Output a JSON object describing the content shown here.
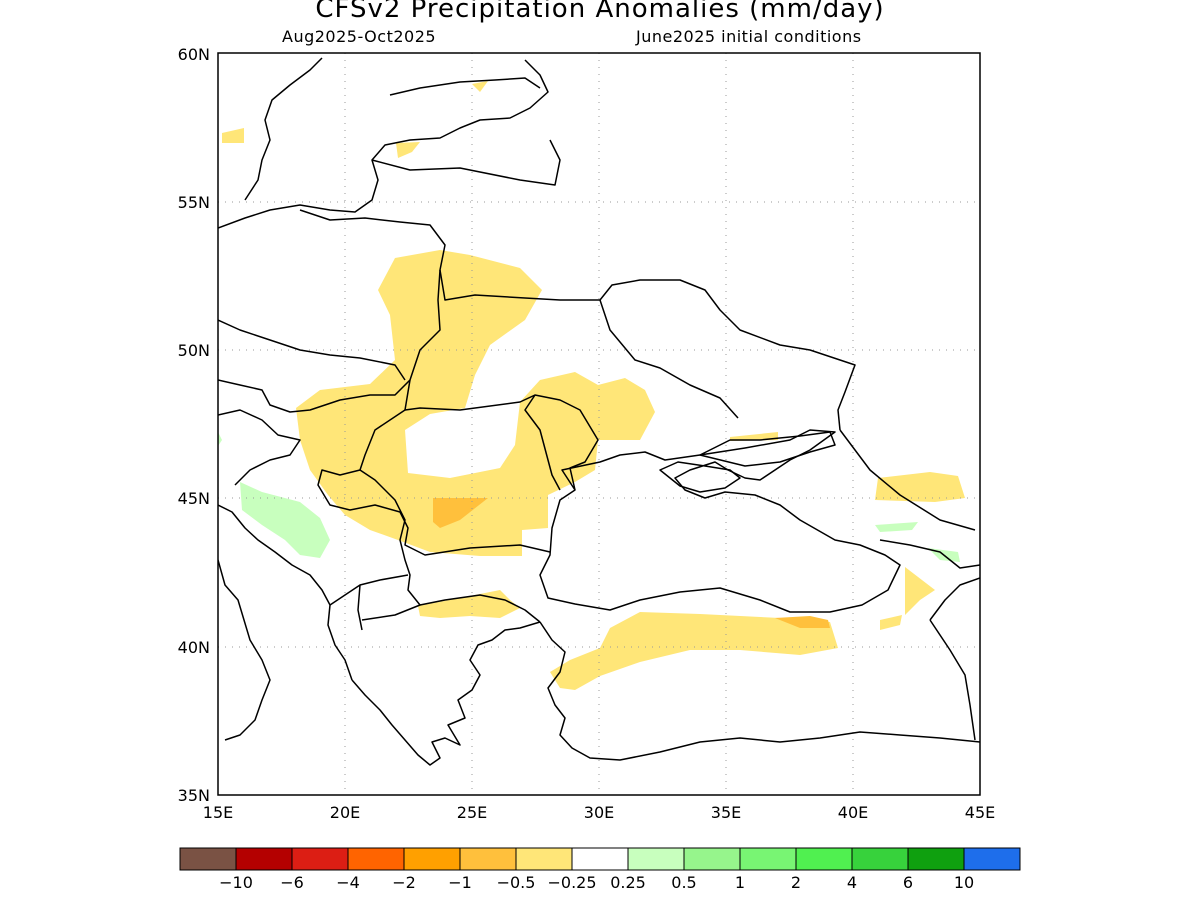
{
  "title": "CFSv2 Precipitation Anomalies (mm/day)",
  "subtitle_left": "Aug2025-Oct2025",
  "subtitle_right": "June2025 initial conditions",
  "map": {
    "lon_range": [
      15,
      45
    ],
    "lat_range": [
      35,
      60
    ],
    "grid": true,
    "x_ticks": [
      "15E",
      "20E",
      "25E",
      "30E",
      "35E",
      "40E",
      "45E"
    ],
    "y_ticks": [
      "35N",
      "40N",
      "45N",
      "50N",
      "55N",
      "60N"
    ]
  },
  "colorbar": {
    "colors": [
      "#7a5244",
      "#b40000",
      "#dc1e14",
      "#ff6400",
      "#ffa000",
      "#ffc03c",
      "#ffe678",
      "#ffffff",
      "#c8ffbe",
      "#96f58c",
      "#78f573",
      "#50f050",
      "#37d23c",
      "#0fa00f",
      "#1e6eeb"
    ],
    "labels": [
      "−10",
      "−6",
      "−4",
      "−2",
      "−1",
      "−0.5",
      "−0.25",
      "0.25",
      "0.5",
      "1",
      "2",
      "4",
      "6",
      "10"
    ]
  }
}
